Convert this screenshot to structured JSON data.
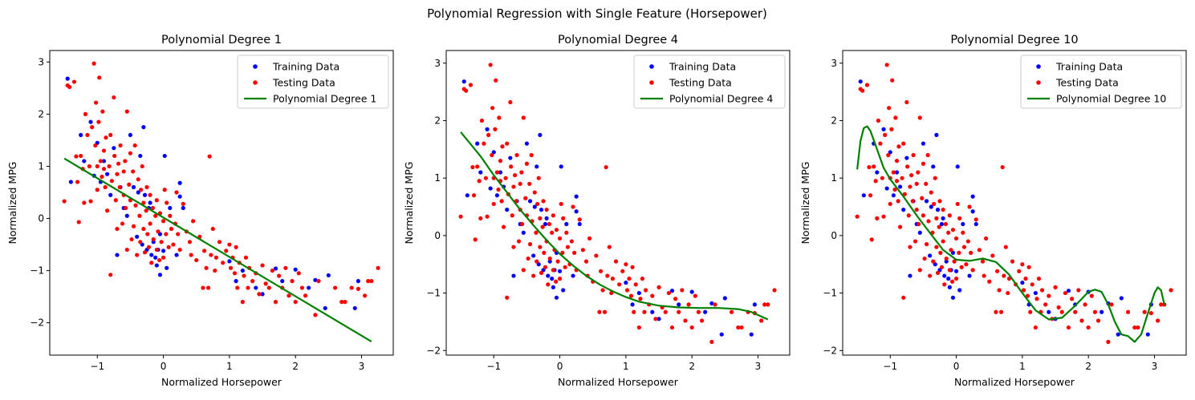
{
  "figure": {
    "title": "Polynomial Regression with Single Feature (Horsepower)"
  },
  "colors": {
    "train": "#0000ff",
    "test": "#ff0000",
    "fit": "#008000"
  },
  "chart_data": [
    {
      "type": "scatter",
      "title": "Polynomial Degree 1",
      "xlabel": "Normalized Horsepower",
      "ylabel": "Normalized MPG",
      "xlim": [
        -1.72,
        3.48
      ],
      "ylim": [
        -2.62,
        3.22
      ],
      "xticks": [
        -1,
        0,
        1,
        2,
        3
      ],
      "yticks": [
        -2,
        -1,
        0,
        1,
        2,
        3
      ],
      "legend_position": "top-right",
      "legend": [
        "Training Data",
        "Testing Data",
        "Polynomial Degree 1"
      ],
      "fit": {
        "x": [
          -1.5,
          3.15
        ],
        "y": [
          1.15,
          -2.36
        ]
      }
    },
    {
      "type": "scatter",
      "title": "Polynomial Degree 4",
      "xlabel": "Normalized Horsepower",
      "ylabel": "Normalized MPG",
      "xlim": [
        -1.72,
        3.48
      ],
      "ylim": [
        -2.08,
        3.22
      ],
      "xticks": [
        -1,
        0,
        1,
        2,
        3
      ],
      "yticks": [
        -2,
        -1,
        0,
        1,
        2,
        3
      ],
      "legend_position": "top-right",
      "legend": [
        "Training Data",
        "Testing Data",
        "Polynomial Degree 4"
      ],
      "fit": {
        "x": [
          -1.5,
          -1.2,
          -1.0,
          -0.8,
          -0.6,
          -0.4,
          -0.2,
          0.0,
          0.2,
          0.4,
          0.6,
          0.8,
          1.0,
          1.2,
          1.5,
          1.8,
          2.1,
          2.4,
          2.7,
          2.9,
          3.15
        ],
        "y": [
          1.8,
          1.38,
          1.05,
          0.75,
          0.45,
          0.18,
          -0.08,
          -0.32,
          -0.52,
          -0.7,
          -0.85,
          -0.97,
          -1.07,
          -1.15,
          -1.22,
          -1.25,
          -1.26,
          -1.26,
          -1.28,
          -1.33,
          -1.46
        ]
      }
    },
    {
      "type": "scatter",
      "title": "Polynomial Degree 10",
      "xlabel": "Normalized Horsepower",
      "ylabel": "Normalized MPG",
      "xlim": [
        -1.72,
        3.48
      ],
      "ylim": [
        -2.08,
        3.22
      ],
      "xticks": [
        -1,
        0,
        1,
        2,
        3
      ],
      "yticks": [
        -2,
        -1,
        0,
        1,
        2,
        3
      ],
      "legend_position": "top-right",
      "legend": [
        "Training Data",
        "Testing Data",
        "Polynomial Degree 10"
      ],
      "fit": {
        "x": [
          -1.5,
          -1.45,
          -1.4,
          -1.35,
          -1.3,
          -1.2,
          -1.1,
          -1.0,
          -0.9,
          -0.8,
          -0.6,
          -0.4,
          -0.2,
          0.0,
          0.2,
          0.4,
          0.6,
          0.8,
          1.0,
          1.2,
          1.4,
          1.6,
          1.8,
          2.0,
          2.1,
          2.2,
          2.3,
          2.4,
          2.5,
          2.6,
          2.7,
          2.8,
          2.9,
          3.0,
          3.05,
          3.1,
          3.15
        ],
        "y": [
          1.15,
          1.65,
          1.87,
          1.9,
          1.82,
          1.5,
          1.18,
          0.98,
          0.83,
          0.68,
          0.35,
          0.05,
          -0.25,
          -0.42,
          -0.44,
          -0.4,
          -0.46,
          -0.68,
          -1.0,
          -1.3,
          -1.46,
          -1.43,
          -1.22,
          -0.98,
          -0.94,
          -0.98,
          -1.2,
          -1.5,
          -1.72,
          -1.75,
          -1.85,
          -1.72,
          -1.35,
          -1.0,
          -0.9,
          -0.95,
          -1.2
        ]
      }
    }
  ],
  "scatter_data": {
    "train": [
      [
        -1.45,
        2.68
      ],
      [
        -1.4,
        0.7
      ],
      [
        -1.25,
        1.6
      ],
      [
        -1.2,
        1.1
      ],
      [
        -1.1,
        1.85
      ],
      [
        -1.05,
        0.82
      ],
      [
        -1.0,
        1.45
      ],
      [
        -0.95,
        0.7
      ],
      [
        -0.9,
        1.1
      ],
      [
        -0.85,
        0.85
      ],
      [
        -0.8,
        0.45
      ],
      [
        -0.75,
        1.35
      ],
      [
        -0.7,
        -0.7
      ],
      [
        -0.65,
        0.6
      ],
      [
        -0.6,
        0.2
      ],
      [
        -0.55,
        0.05
      ],
      [
        -0.5,
        1.6
      ],
      [
        -0.45,
        0.6
      ],
      [
        -0.4,
        -0.35
      ],
      [
        -0.38,
        0.5
      ],
      [
        -0.35,
        1.2
      ],
      [
        -0.32,
        -0.5
      ],
      [
        -0.3,
        1.75
      ],
      [
        -0.28,
        0.45
      ],
      [
        -0.25,
        -0.6
      ],
      [
        -0.22,
        0.2
      ],
      [
        -0.2,
        0.3
      ],
      [
        -0.18,
        -0.7
      ],
      [
        -0.15,
        -0.45
      ],
      [
        -0.12,
        -0.75
      ],
      [
        -0.1,
        -0.9
      ],
      [
        -0.08,
        -0.6
      ],
      [
        -0.05,
        -1.08
      ],
      [
        -0.05,
        -0.3
      ],
      [
        0.0,
        -0.62
      ],
      [
        0.02,
        1.2
      ],
      [
        0.05,
        -0.95
      ],
      [
        0.1,
        0.2
      ],
      [
        0.2,
        -0.7
      ],
      [
        0.25,
        0.68
      ],
      [
        0.25,
        0.42
      ],
      [
        0.3,
        0.2
      ],
      [
        1.0,
        -0.82
      ],
      [
        1.1,
        -1.2
      ],
      [
        1.2,
        -1.0
      ],
      [
        1.4,
        -1.33
      ],
      [
        1.5,
        -1.45
      ],
      [
        1.7,
        -0.96
      ],
      [
        1.8,
        -1.2
      ],
      [
        2.0,
        -0.98
      ],
      [
        2.2,
        -1.33
      ],
      [
        2.3,
        -1.18
      ],
      [
        2.45,
        -1.72
      ],
      [
        2.5,
        -1.09
      ],
      [
        2.9,
        -1.72
      ],
      [
        2.95,
        -1.2
      ]
    ],
    "test": [
      [
        -1.5,
        0.33
      ],
      [
        -1.45,
        2.55
      ],
      [
        -1.42,
        2.52
      ],
      [
        -1.35,
        2.62
      ],
      [
        -1.32,
        1.19
      ],
      [
        -1.3,
        0.7
      ],
      [
        -1.28,
        -0.07
      ],
      [
        -1.25,
        1.2
      ],
      [
        -1.22,
        0.95
      ],
      [
        -1.2,
        0.3
      ],
      [
        -1.18,
        2.0
      ],
      [
        -1.15,
        1.6
      ],
      [
        -1.12,
        1.0
      ],
      [
        -1.1,
        0.33
      ],
      [
        -1.08,
        1.75
      ],
      [
        -1.05,
        2.97
      ],
      [
        -1.03,
        1.4
      ],
      [
        -1.02,
        2.22
      ],
      [
        -1.0,
        1.0
      ],
      [
        -1.0,
        0.55
      ],
      [
        -0.98,
        1.85
      ],
      [
        -0.97,
        2.7
      ],
      [
        -0.95,
        1.1
      ],
      [
        -0.93,
        0.8
      ],
      [
        -0.92,
        2.05
      ],
      [
        -0.9,
        1.3
      ],
      [
        -0.9,
        0.95
      ],
      [
        -0.88,
        0.6
      ],
      [
        -0.87,
        1.55
      ],
      [
        -0.85,
        0.15
      ],
      [
        -0.82,
        1.0
      ],
      [
        -0.8,
        -1.08
      ],
      [
        -0.8,
        1.6
      ],
      [
        -0.78,
        0.72
      ],
      [
        -0.75,
        2.32
      ],
      [
        -0.74,
        1.2
      ],
      [
        -0.72,
        0.35
      ],
      [
        -0.7,
        0.85
      ],
      [
        -0.7,
        -0.2
      ],
      [
        -0.68,
        1.05
      ],
      [
        -0.66,
        0.6
      ],
      [
        -0.65,
        1.4
      ],
      [
        -0.62,
        -0.1
      ],
      [
        -0.6,
        0.45
      ],
      [
        -0.6,
        0.9
      ],
      [
        -0.58,
        1.1
      ],
      [
        -0.57,
        0.2
      ],
      [
        -0.55,
        2.05
      ],
      [
        -0.55,
        -0.6
      ],
      [
        -0.52,
        0.65
      ],
      [
        -0.5,
        1.25
      ],
      [
        -0.5,
        0.35
      ],
      [
        -0.48,
        -0.4
      ],
      [
        -0.46,
        0.9
      ],
      [
        -0.45,
        -0.15
      ],
      [
        -0.43,
        1.4
      ],
      [
        -0.42,
        0.25
      ],
      [
        -0.4,
        -0.7
      ],
      [
        -0.38,
        0.75
      ],
      [
        -0.36,
        0.05
      ],
      [
        -0.35,
        -0.45
      ],
      [
        -0.34,
        0.55
      ],
      [
        -0.32,
        1.0
      ],
      [
        -0.3,
        -0.2
      ],
      [
        -0.3,
        0.3
      ],
      [
        -0.28,
        -0.65
      ],
      [
        -0.26,
        0.15
      ],
      [
        -0.25,
        0.6
      ],
      [
        -0.24,
        -0.3
      ],
      [
        -0.22,
        -0.55
      ],
      [
        -0.2,
        0.45
      ],
      [
        -0.2,
        -0.1
      ],
      [
        -0.18,
        -0.85
      ],
      [
        -0.16,
        0.2
      ],
      [
        -0.15,
        -0.4
      ],
      [
        -0.12,
        0.05
      ],
      [
        -0.1,
        -0.6
      ],
      [
        -0.1,
        0.35
      ],
      [
        -0.08,
        -0.25
      ],
      [
        -0.06,
        -0.8
      ],
      [
        -0.05,
        0.1
      ],
      [
        -0.03,
        -0.45
      ],
      [
        0.0,
        -0.05
      ],
      [
        0.0,
        -0.75
      ],
      [
        0.02,
        0.55
      ],
      [
        0.04,
        -0.3
      ],
      [
        0.05,
        0.3
      ],
      [
        0.08,
        -0.55
      ],
      [
        0.1,
        0.05
      ],
      [
        0.12,
        -0.2
      ],
      [
        0.15,
        -0.5
      ],
      [
        0.18,
        -0.1
      ],
      [
        0.2,
        0.5
      ],
      [
        0.22,
        -0.3
      ],
      [
        0.25,
        -0.6
      ],
      [
        0.3,
        0.28
      ],
      [
        0.35,
        -0.25
      ],
      [
        0.4,
        -0.45
      ],
      [
        0.42,
        -0.7
      ],
      [
        0.45,
        -0.05
      ],
      [
        0.5,
        -0.8
      ],
      [
        0.55,
        -0.35
      ],
      [
        0.6,
        -1.33
      ],
      [
        0.62,
        -0.62
      ],
      [
        0.65,
        -0.95
      ],
      [
        0.68,
        -1.33
      ],
      [
        0.7,
        1.19
      ],
      [
        0.72,
        -0.7
      ],
      [
        0.75,
        -0.2
      ],
      [
        0.78,
        -1.0
      ],
      [
        0.8,
        -0.75
      ],
      [
        0.85,
        -0.45
      ],
      [
        0.9,
        -0.85
      ],
      [
        0.95,
        -0.62
      ],
      [
        1.0,
        -0.5
      ],
      [
        1.02,
        -0.95
      ],
      [
        1.05,
        -0.75
      ],
      [
        1.08,
        -1.05
      ],
      [
        1.1,
        -0.55
      ],
      [
        1.12,
        -1.33
      ],
      [
        1.15,
        -0.85
      ],
      [
        1.2,
        -1.6
      ],
      [
        1.22,
        -1.1
      ],
      [
        1.25,
        -0.75
      ],
      [
        1.28,
        -1.33
      ],
      [
        1.3,
        -0.95
      ],
      [
        1.35,
        -1.2
      ],
      [
        1.4,
        -1.05
      ],
      [
        1.45,
        -1.45
      ],
      [
        1.5,
        -0.9
      ],
      [
        1.55,
        -1.25
      ],
      [
        1.6,
        -1.33
      ],
      [
        1.65,
        -1.0
      ],
      [
        1.7,
        -1.6
      ],
      [
        1.75,
        -1.1
      ],
      [
        1.8,
        -1.33
      ],
      [
        1.85,
        -0.95
      ],
      [
        1.9,
        -1.48
      ],
      [
        1.95,
        -1.2
      ],
      [
        2.0,
        -1.6
      ],
      [
        2.05,
        -1.05
      ],
      [
        2.1,
        -1.33
      ],
      [
        2.15,
        -1.48
      ],
      [
        2.3,
        -1.85
      ],
      [
        2.35,
        -1.2
      ],
      [
        2.6,
        -1.33
      ],
      [
        2.7,
        -1.6
      ],
      [
        2.75,
        -1.6
      ],
      [
        2.85,
        -1.33
      ],
      [
        2.95,
        -1.35
      ],
      [
        3.05,
        -1.48
      ],
      [
        3.1,
        -1.2
      ],
      [
        3.15,
        -1.2
      ],
      [
        3.25,
        -0.95
      ]
    ]
  }
}
